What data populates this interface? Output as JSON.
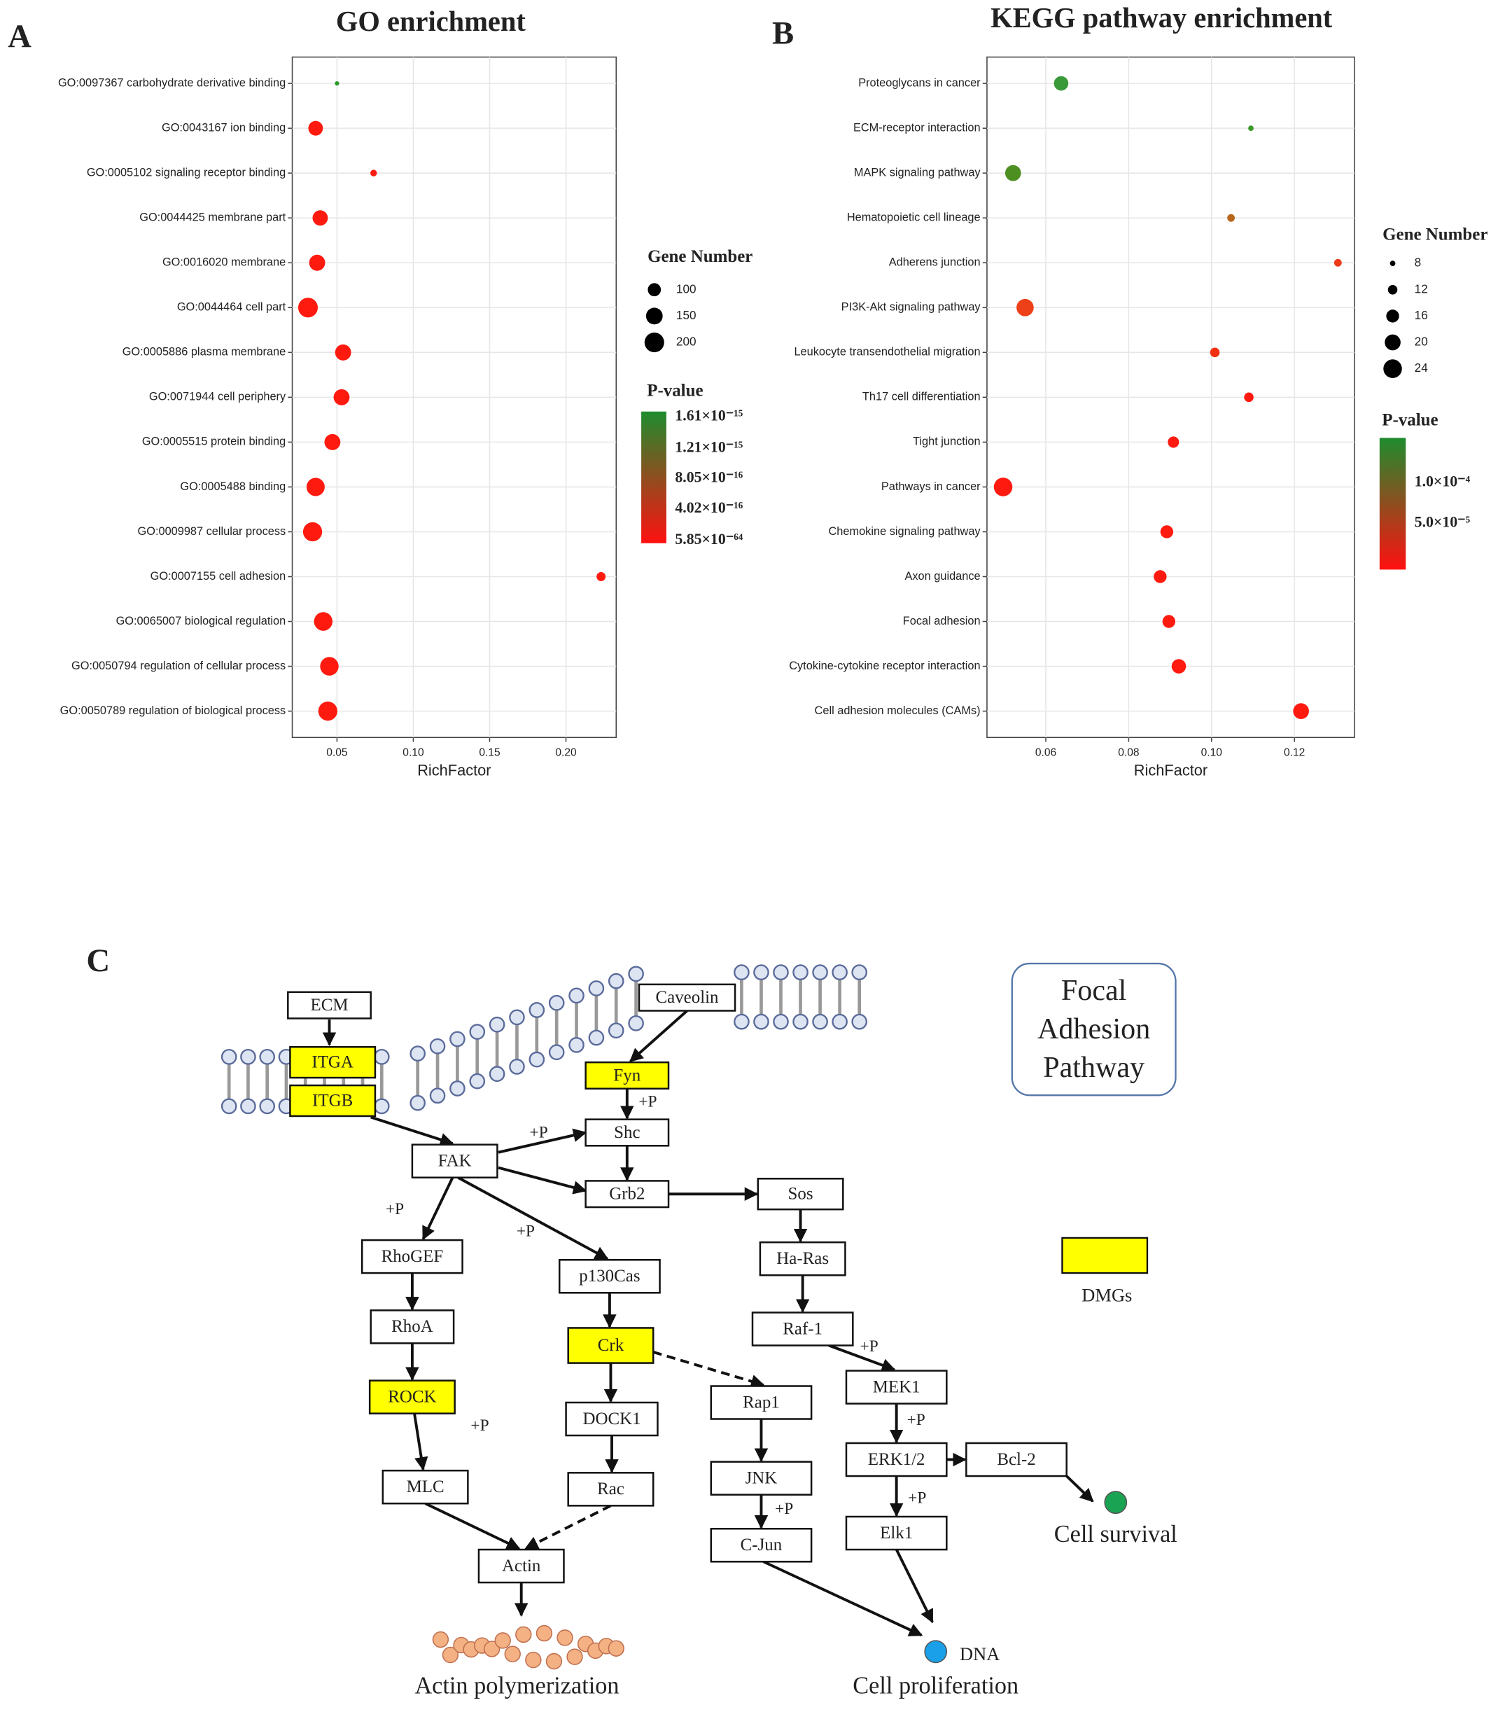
{
  "chart_data": [
    {
      "type": "scatter",
      "panel": "A",
      "title": "GO enrichment",
      "xlabel": "RichFactor",
      "categories": [
        "GO:0097367 carbohydrate derivative binding",
        "GO:0043167 ion binding",
        "GO:0005102 signaling receptor binding",
        "GO:0044425 membrane part",
        "GO:0016020 membrane",
        "GO:0044464 cell part",
        "GO:0005886 plasma membrane",
        "GO:0071944 cell periphery",
        "GO:0005515 protein binding",
        "GO:0005488 binding",
        "GO:0009987 cellular process",
        "GO:0007155 cell adhesion",
        "GO:0065007 biological regulation",
        "GO:0050794 regulation of cellular process",
        "GO:0050789 regulation of biological process"
      ],
      "values": [
        0.05,
        0.036,
        0.074,
        0.039,
        0.037,
        0.031,
        0.054,
        0.053,
        0.047,
        0.036,
        0.034,
        0.223,
        0.041,
        0.045,
        0.044
      ],
      "sizes": [
        20,
        120,
        35,
        130,
        140,
        200,
        140,
        140,
        140,
        175,
        190,
        55,
        180,
        180,
        190
      ],
      "colors": [
        "#2e9a2e",
        "#ff1a10",
        "#ff1a10",
        "#ff1a10",
        "#ff1a10",
        "#ff1a10",
        "#ff1a10",
        "#ff1a10",
        "#ff1a10",
        "#ff1a10",
        "#ff1a10",
        "#ff1a10",
        "#ff1a10",
        "#ff1a10",
        "#ff1a10"
      ],
      "xlim": [
        0.0207,
        0.2329
      ],
      "xticks": [
        0.05,
        {
          "value": 0.1,
          "label": "0.10"
        },
        0.15,
        {
          "value": 0.2,
          "label": "0.20"
        }
      ],
      "grid": true,
      "size_legend": {
        "title": "Gene Number",
        "values": [
          100,
          150,
          200
        ]
      },
      "color_legend": {
        "title": "P-value",
        "labels": [
          "1.61×10⁻¹⁵",
          "1.21×10⁻¹⁵",
          "8.05×10⁻¹⁶",
          "4.02×10⁻¹⁶",
          "5.85×10⁻⁶⁴"
        ],
        "colors": [
          "#1e8c2e",
          "#ff1010"
        ]
      }
    },
    {
      "type": "scatter",
      "panel": "B",
      "title": "KEGG pathway enrichment",
      "xlabel": "RichFactor",
      "categories": [
        "Proteoglycans in cancer",
        "ECM-receptor interaction",
        "MAPK signaling pathway",
        "Hematopoietic cell lineage",
        "Adherens junction",
        "PI3K-Akt signaling pathway",
        "Leukocyte transendothelial migration",
        "Th17 cell differentiation",
        "Tight junction",
        "Pathways in cancer",
        "Chemokine signaling pathway",
        "Axon guidance",
        "Focal adhesion",
        "Cytokine-cytokine receptor interaction",
        "Cell adhesion molecules (CAMs)"
      ],
      "values": [
        0.0637,
        0.1095,
        0.0521,
        0.1047,
        0.1305,
        0.055,
        0.1008,
        0.109,
        0.0908,
        0.0497,
        0.0892,
        0.0876,
        0.0897,
        0.0921,
        0.1216
      ],
      "sizes": [
        18,
        8,
        20,
        10,
        10,
        22,
        12,
        12,
        14,
        24,
        16,
        16,
        16,
        18,
        20
      ],
      "colors": [
        "#3a9a3a",
        "#3a9a2a",
        "#4e8f22",
        "#b8661a",
        "#ee3a18",
        "#ee4018",
        "#f03010",
        "#ff1a10",
        "#ff1a10",
        "#ff1a10",
        "#ff1a10",
        "#ff1a10",
        "#ff1a10",
        "#ff1a10",
        "#ff1a10"
      ],
      "xlim": [
        0.0458,
        0.1345
      ],
      "xticks": [
        0.06,
        0.08,
        {
          "value": 0.1,
          "label": "0.10"
        },
        0.12
      ],
      "grid": true,
      "size_legend": {
        "title": "Gene Number",
        "values": [
          8,
          12,
          16,
          20,
          24
        ]
      },
      "color_legend": {
        "title": "P-value",
        "labels": [
          "1.0×10⁻⁴",
          "5.0×10⁻⁵"
        ],
        "colors": [
          "#1e8c2e",
          "#ff1010"
        ]
      }
    }
  ],
  "diagram": {
    "panel": "C",
    "title_lines": [
      "Focal",
      "Adhesion",
      "Pathway"
    ],
    "legend": "DMGs",
    "nodes": [
      {
        "label": "ECM",
        "highlighted": false
      },
      {
        "label": "ITGA",
        "highlighted": true
      },
      {
        "label": "ITGB",
        "highlighted": true
      },
      {
        "label": "Caveolin",
        "highlighted": false
      },
      {
        "label": "Fyn",
        "highlighted": true
      },
      {
        "label": "Shc",
        "highlighted": false
      },
      {
        "label": "FAK",
        "highlighted": false
      },
      {
        "label": "Grb2",
        "highlighted": false
      },
      {
        "label": "Sos",
        "highlighted": false
      },
      {
        "label": "RhoGEF",
        "highlighted": false
      },
      {
        "label": "p130Cas",
        "highlighted": false
      },
      {
        "label": "Ha-Ras",
        "highlighted": false
      },
      {
        "label": "RhoA",
        "highlighted": false
      },
      {
        "label": "Raf-1",
        "highlighted": false
      },
      {
        "label": "Crk",
        "highlighted": true
      },
      {
        "label": "ROCK",
        "highlighted": true
      },
      {
        "label": "Rap1",
        "highlighted": false
      },
      {
        "label": "MEK1",
        "highlighted": false
      },
      {
        "label": "DOCK1",
        "highlighted": false
      },
      {
        "label": "ERK1/2",
        "highlighted": false
      },
      {
        "label": "Bcl-2",
        "highlighted": false
      },
      {
        "label": "JNK",
        "highlighted": false
      },
      {
        "label": "MLC",
        "highlighted": false
      },
      {
        "label": "Rac",
        "highlighted": false
      },
      {
        "label": "Elk1",
        "highlighted": false
      },
      {
        "label": "C-Jun",
        "highlighted": false
      },
      {
        "label": "Actin",
        "highlighted": false
      }
    ],
    "phospho_labels": [
      "+P",
      "+P",
      "+P",
      "+P",
      "+P",
      "+P",
      "+P",
      "+P",
      "+P"
    ],
    "outcomes": {
      "survival": "Cell survival",
      "dna": "DNA",
      "proliferation": "Cell proliferation",
      "actin": "Actin polymerization"
    }
  }
}
